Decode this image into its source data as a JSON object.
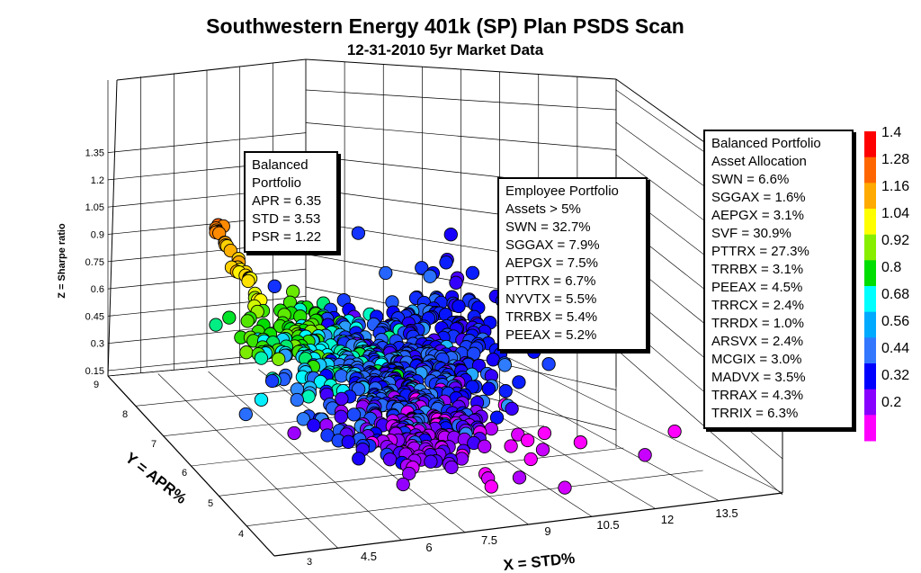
{
  "chart_data": {
    "type": "scatter3d",
    "title": "Southwestern Energy 401k (SP) Plan PSDS Scan",
    "subtitle": "12-31-2010 5yr Market Data",
    "xlabel": "X = STD%",
    "ylabel": "Y = APR%",
    "zlabel": "Z = Sharpe ratio",
    "x_ticks": [
      "3",
      "4.5",
      "6",
      "7.5",
      "9",
      "10.5",
      "12",
      "13.5"
    ],
    "y_ticks": [
      "3",
      "4",
      "5",
      "6",
      "7",
      "8",
      "9"
    ],
    "z_ticks": [
      "0.15",
      "0.3",
      "0.45",
      "0.6",
      "0.75",
      "0.9",
      "1.05",
      "1.2",
      "1.35"
    ],
    "colorbar": {
      "labels": [
        "1.4",
        "1.28",
        "1.16",
        "1.04",
        "0.92",
        "0.8",
        "0.68",
        "0.56",
        "0.44",
        "0.32",
        "0.2"
      ],
      "colors": [
        "#ff0000",
        "#ff6600",
        "#ffaa00",
        "#ffff00",
        "#88ee00",
        "#00dd00",
        "#00ffff",
        "#00aaff",
        "#3377ff",
        "#0000ff",
        "#8800ff",
        "#ff00ff"
      ]
    },
    "clusters": [
      {
        "name": "high-sharpe",
        "n": 30,
        "cx": 262,
        "cy": 290,
        "sx": 14,
        "sy": 30,
        "z": 1.25
      },
      {
        "name": "mid-sharpe",
        "n": 60,
        "cx": 320,
        "cy": 370,
        "sx": 30,
        "sy": 20,
        "z": 0.85
      },
      {
        "name": "cyan",
        "n": 90,
        "cx": 375,
        "cy": 395,
        "sx": 40,
        "sy": 22,
        "z": 0.68
      },
      {
        "name": "blue",
        "n": 260,
        "cx": 430,
        "cy": 420,
        "sx": 55,
        "sy": 40,
        "z": 0.52
      },
      {
        "name": "navy",
        "n": 150,
        "cx": 460,
        "cy": 420,
        "sx": 50,
        "sy": 40,
        "z": 0.42
      },
      {
        "name": "upper-blue",
        "n": 60,
        "cx": 515,
        "cy": 355,
        "sx": 30,
        "sy": 30,
        "z": 0.45
      },
      {
        "name": "purple",
        "n": 110,
        "cx": 470,
        "cy": 478,
        "sx": 38,
        "sy": 22,
        "z": 0.32
      },
      {
        "name": "magenta",
        "n": 22,
        "cx": 560,
        "cy": 500,
        "sx": 70,
        "sy": 28,
        "z": 0.2
      }
    ],
    "annotations": {
      "balanced": [
        "Balanced",
        "Portfolio",
        "APR = 6.35",
        "STD = 3.53",
        "PSR = 1.22"
      ],
      "employee": [
        "Employee Portfolio",
        "Assets > 5%",
        "SWN = 32.7%",
        "SGGAX = 7.9%",
        "AEPGX = 7.5%",
        "PTTRX = 6.7%",
        "NYVTX = 5.5%",
        "TRRBX = 5.4%",
        "PEEAX = 5.2%"
      ],
      "allocation": [
        "Balanced Portfolio",
        "Asset Allocation",
        "SWN = 6.6%",
        "SGGAX = 1.6%",
        "AEPGX = 3.1%",
        "SVF = 30.9%",
        "PTTRX = 27.3%",
        "TRRBX = 3.1%",
        "PEEAX = 4.5%",
        "TRRCX = 2.4%",
        "TRRDX = 1.0%",
        "ARSVX = 2.4%",
        "MCGIX = 3.0%",
        "MADVX = 3.5%",
        "TRRAX = 4.3%",
        "TRRIX = 6.3%"
      ]
    }
  }
}
